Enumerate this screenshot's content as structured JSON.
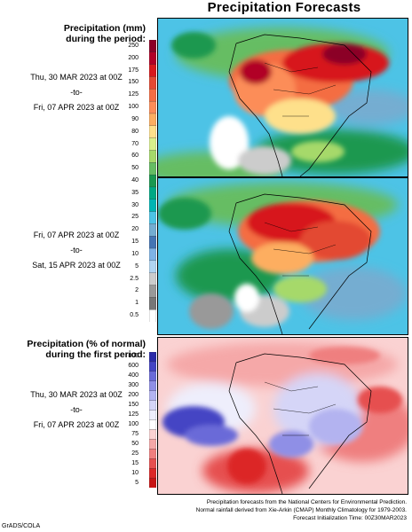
{
  "title": "Precipitation Forecasts",
  "section1": {
    "heading_line1": "Precipitation (mm)",
    "heading_line2": "during the period:",
    "period1": {
      "start": "Thu, 30 MAR 2023 at 00Z",
      "sep": "-to-",
      "end": "Fri, 07 APR 2023 at 00Z"
    },
    "period2": {
      "start": "Fri, 07 APR 2023 at 00Z",
      "sep": "-to-",
      "end": "Sat, 15 APR 2023 at 00Z"
    },
    "ticks": [
      "250",
      "200",
      "175",
      "150",
      "125",
      "100",
      "90",
      "80",
      "70",
      "60",
      "50",
      "40",
      "35",
      "30",
      "25",
      "20",
      "15",
      "10",
      "5",
      "2.5",
      "2",
      "1",
      "0.5"
    ]
  },
  "section2": {
    "heading_line1": "Precipitation (% of normal)",
    "heading_line2": "during the first period:",
    "period": {
      "start": "Thu, 30 MAR 2023 at 00Z",
      "sep": "-to-",
      "end": "Fri, 07 APR 2023 at 00Z"
    },
    "ticks": [
      "800",
      "600",
      "400",
      "300",
      "200",
      "150",
      "125",
      "100",
      "75",
      "50",
      "25",
      "15",
      "10",
      "5"
    ]
  },
  "footer": {
    "line1": "Precipitation forecasts from the National Centers for Environmental Prediction.",
    "line2": "Normal rainfall derived from Xie-Arkin (CMAP) Monthly Climatology for 1979-2003.",
    "line3": "Forecast Initialization Time: 00Z30MAR2023"
  },
  "credit": "GrADS/COLA",
  "colors": {
    "precip_scale": [
      "#8b0026",
      "#b10026",
      "#d7191c",
      "#e34a33",
      "#f46d43",
      "#fc8d59",
      "#fdae61",
      "#fee08b",
      "#d9ef8b",
      "#a6d96a",
      "#66bd63",
      "#1a9850",
      "#00a884",
      "#00b4b4",
      "#4dc3e6",
      "#74add1",
      "#4575b4",
      "#7fb3e6",
      "#b0d4f1",
      "#cccccc",
      "#999999",
      "#777777",
      "#ffffff"
    ],
    "normal_scale": [
      "#2a2aa8",
      "#4444c4",
      "#6a6ad8",
      "#8f8fe6",
      "#b3b3f0",
      "#d5d5f7",
      "#eeeefc",
      "#ffffff",
      "#fad2d2",
      "#f5a8a8",
      "#ef7f7f",
      "#e65050",
      "#dc2828",
      "#c81414"
    ]
  }
}
